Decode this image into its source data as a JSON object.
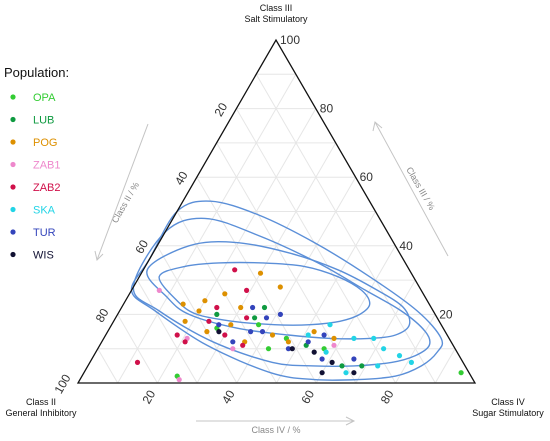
{
  "chart_data": {
    "type": "scatter",
    "subtype": "ternary",
    "corners": {
      "top": {
        "line1": "Class III",
        "line2": "Salt Stimulatory"
      },
      "left": {
        "line1": "Class II",
        "line2": "General Inhibitory"
      },
      "right": {
        "line1": "Class IV",
        "line2": "Sugar Stimulatory"
      }
    },
    "axes": {
      "class2": {
        "label": "Class II / %",
        "ticks": [
          20,
          40,
          60,
          80,
          100
        ]
      },
      "class3": {
        "label": "Class III / %",
        "ticks": [
          20,
          40,
          60,
          80,
          100
        ]
      },
      "class4": {
        "label": "Class IV / %",
        "ticks": [
          20,
          40,
          60,
          80
        ]
      }
    },
    "grid": true,
    "legend": {
      "title": "Population:",
      "position": "left",
      "items": [
        {
          "name": "OPA",
          "color": "#33cc33"
        },
        {
          "name": "LUB",
          "color": "#0f9a40"
        },
        {
          "name": "POG",
          "color": "#dd9000"
        },
        {
          "name": "ZAB1",
          "color": "#ee88cc"
        },
        {
          "name": "ZAB2",
          "color": "#d0104a"
        },
        {
          "name": "SKA",
          "color": "#22d4e6"
        },
        {
          "name": "TUR",
          "color": "#3344bb"
        },
        {
          "name": "WIS",
          "color": "#111133"
        }
      ]
    },
    "contour_color": "#5b8fd8",
    "contours": [
      [
        [
          64,
          31,
          5
        ],
        [
          63,
          24,
          13
        ],
        [
          60,
          20,
          20
        ],
        [
          52,
          18,
          30
        ],
        [
          42,
          17,
          41
        ],
        [
          33,
          17,
          50
        ],
        [
          25,
          18,
          57
        ],
        [
          19,
          20,
          61
        ],
        [
          15,
          23,
          62
        ],
        [
          15,
          27,
          58
        ],
        [
          19,
          31,
          50
        ],
        [
          26,
          34,
          40
        ],
        [
          36,
          35,
          29
        ],
        [
          47,
          35,
          18
        ],
        [
          56,
          34,
          10
        ]
      ],
      [
        [
          66,
          33,
          1
        ],
        [
          65,
          25,
          10
        ],
        [
          62,
          20,
          18
        ],
        [
          52,
          16,
          32
        ],
        [
          40,
          14,
          46
        ],
        [
          30,
          13,
          57
        ],
        [
          20,
          13,
          67
        ],
        [
          13,
          14,
          73
        ],
        [
          8,
          17,
          75
        ],
        [
          7,
          22,
          71
        ],
        [
          11,
          27,
          62
        ],
        [
          18,
          33,
          49
        ],
        [
          28,
          38,
          34
        ],
        [
          40,
          41,
          19
        ],
        [
          52,
          40,
          8
        ]
      ],
      [
        [
          72,
          28,
          0
        ],
        [
          69,
          21,
          10
        ],
        [
          60,
          12,
          28
        ],
        [
          48,
          6,
          46
        ],
        [
          38,
          5,
          57
        ],
        [
          28,
          5,
          67
        ],
        [
          18,
          6,
          76
        ],
        [
          11,
          8,
          81
        ],
        [
          6,
          11,
          83
        ],
        [
          5,
          15,
          80
        ],
        [
          8,
          21,
          71
        ],
        [
          14,
          27,
          59
        ],
        [
          22,
          35,
          43
        ],
        [
          33,
          43,
          24
        ],
        [
          44,
          48,
          8
        ],
        [
          56,
          44,
          0
        ]
      ],
      [
        [
          73,
          27,
          0
        ],
        [
          70,
          21,
          9
        ],
        [
          62,
          11,
          27
        ],
        [
          50,
          3,
          47
        ],
        [
          40,
          1,
          59
        ],
        [
          29,
          1,
          70
        ],
        [
          19,
          2,
          79
        ],
        [
          11,
          5,
          84
        ],
        [
          5,
          9,
          86
        ],
        [
          2,
          13,
          85
        ],
        [
          4,
          21,
          75
        ],
        [
          11,
          31,
          58
        ],
        [
          20,
          41,
          39
        ],
        [
          30,
          49,
          21
        ],
        [
          40,
          53,
          7
        ],
        [
          50,
          50,
          0
        ],
        [
          64,
          36,
          0
        ]
      ]
    ],
    "points": [
      {
        "pop": "OPA",
        "c2": 57,
        "c3": 16,
        "c4": 27
      },
      {
        "pop": "OPA",
        "c2": 47,
        "c3": 10,
        "c4": 43
      },
      {
        "pop": "OPA",
        "c2": 41,
        "c3": 13,
        "c4": 46
      },
      {
        "pop": "OPA",
        "c2": 33,
        "c3": 10,
        "c4": 57
      },
      {
        "pop": "OPA",
        "c2": 2,
        "c3": 3,
        "c4": 95
      },
      {
        "pop": "OPA",
        "c2": 74,
        "c3": 2,
        "c4": 24
      },
      {
        "pop": "OPA",
        "c2": 46,
        "c3": 17,
        "c4": 37
      },
      {
        "pop": "LUB",
        "c2": 55,
        "c3": 20,
        "c4": 25
      },
      {
        "pop": "LUB",
        "c2": 46,
        "c3": 19,
        "c4": 35
      },
      {
        "pop": "LUB",
        "c2": 37,
        "c3": 11,
        "c4": 52
      },
      {
        "pop": "LUB",
        "c2": 31,
        "c3": 5,
        "c4": 64
      },
      {
        "pop": "LUB",
        "c2": 42,
        "c3": 22,
        "c4": 36
      },
      {
        "pop": "LUB",
        "c2": 26,
        "c3": 5,
        "c4": 69
      },
      {
        "pop": "POG",
        "c2": 64,
        "c3": 18,
        "c4": 18
      },
      {
        "pop": "POG",
        "c2": 62,
        "c3": 23,
        "c4": 15
      },
      {
        "pop": "POG",
        "c2": 59,
        "c3": 21,
        "c4": 20
      },
      {
        "pop": "POG",
        "c2": 56,
        "c3": 24,
        "c4": 20
      },
      {
        "pop": "POG",
        "c2": 53,
        "c3": 17,
        "c4": 30
      },
      {
        "pop": "POG",
        "c2": 50,
        "c3": 26,
        "c4": 24
      },
      {
        "pop": "POG",
        "c2": 44,
        "c3": 14,
        "c4": 42
      },
      {
        "pop": "POG",
        "c2": 38,
        "c3": 32,
        "c4": 30
      },
      {
        "pop": "POG",
        "c2": 35,
        "c3": 28,
        "c4": 37
      },
      {
        "pop": "POG",
        "c2": 41,
        "c3": 12,
        "c4": 47
      },
      {
        "pop": "POG",
        "c2": 33,
        "c3": 15,
        "c4": 52
      },
      {
        "pop": "POG",
        "c2": 60,
        "c3": 15,
        "c4": 25
      },
      {
        "pop": "POG",
        "c2": 48,
        "c3": 22,
        "c4": 30
      },
      {
        "pop": "POG",
        "c2": 29,
        "c3": 13,
        "c4": 58
      },
      {
        "pop": "POG",
        "c2": 52,
        "c3": 12,
        "c4": 36
      },
      {
        "pop": "ZAB1",
        "c2": 66,
        "c3": 27,
        "c4": 7
      },
      {
        "pop": "ZAB1",
        "c2": 66,
        "c3": 13,
        "c4": 21
      },
      {
        "pop": "ZAB1",
        "c2": 74,
        "c3": 1,
        "c4": 25
      },
      {
        "pop": "ZAB1",
        "c2": 56,
        "c3": 10,
        "c4": 34
      },
      {
        "pop": "ZAB1",
        "c2": 30,
        "c3": 11,
        "c4": 59
      },
      {
        "pop": "ZAB2",
        "c2": 82,
        "c3": 6,
        "c4": 12
      },
      {
        "pop": "ZAB2",
        "c2": 68,
        "c3": 14,
        "c4": 18
      },
      {
        "pop": "ZAB2",
        "c2": 67,
        "c3": 12,
        "c4": 21
      },
      {
        "pop": "ZAB2",
        "c2": 58,
        "c3": 18,
        "c4": 24
      },
      {
        "pop": "ZAB2",
        "c2": 54,
        "c3": 22,
        "c4": 24
      },
      {
        "pop": "ZAB2",
        "c2": 56,
        "c3": 14,
        "c4": 30
      },
      {
        "pop": "ZAB2",
        "c2": 44,
        "c3": 27,
        "c4": 29
      },
      {
        "pop": "ZAB2",
        "c2": 44,
        "c3": 33,
        "c4": 23
      },
      {
        "pop": "ZAB2",
        "c2": 53,
        "c3": 11,
        "c4": 36
      },
      {
        "pop": "ZAB2",
        "c2": 48,
        "c3": 19,
        "c4": 33
      },
      {
        "pop": "SKA",
        "c2": 33,
        "c3": 9,
        "c4": 58
      },
      {
        "pop": "SKA",
        "c2": 24,
        "c3": 13,
        "c4": 63
      },
      {
        "pop": "SKA",
        "c2": 28,
        "c3": 17,
        "c4": 55
      },
      {
        "pop": "SKA",
        "c2": 19,
        "c3": 13,
        "c4": 68
      },
      {
        "pop": "SKA",
        "c2": 18,
        "c3": 10,
        "c4": 72
      },
      {
        "pop": "SKA",
        "c2": 15,
        "c3": 8,
        "c4": 77
      },
      {
        "pop": "SKA",
        "c2": 13,
        "c3": 6,
        "c4": 81
      },
      {
        "pop": "SKA",
        "c2": 22,
        "c3": 5,
        "c4": 73
      },
      {
        "pop": "SKA",
        "c2": 31,
        "c3": 3,
        "c4": 66
      },
      {
        "pop": "SKA",
        "c2": 35,
        "c3": 14,
        "c4": 51
      },
      {
        "pop": "TUR",
        "c2": 56,
        "c3": 17,
        "c4": 27
      },
      {
        "pop": "TUR",
        "c2": 55,
        "c3": 12,
        "c4": 33
      },
      {
        "pop": "TUR",
        "c2": 49,
        "c3": 15,
        "c4": 36
      },
      {
        "pop": "TUR",
        "c2": 46,
        "c3": 15,
        "c4": 39
      },
      {
        "pop": "TUR",
        "c2": 45,
        "c3": 22,
        "c4": 33
      },
      {
        "pop": "TUR",
        "c2": 43,
        "c3": 19,
        "c4": 38
      },
      {
        "pop": "TUR",
        "c2": 42,
        "c3": 10,
        "c4": 48
      },
      {
        "pop": "TUR",
        "c2": 36,
        "c3": 12,
        "c4": 52
      },
      {
        "pop": "TUR",
        "c2": 35,
        "c3": 7,
        "c4": 58
      },
      {
        "pop": "TUR",
        "c2": 27,
        "c3": 7,
        "c4": 66
      },
      {
        "pop": "TUR",
        "c2": 31,
        "c3": 14,
        "c4": 55
      },
      {
        "pop": "TUR",
        "c2": 39,
        "c3": 20,
        "c4": 41
      },
      {
        "pop": "WIS",
        "c2": 57,
        "c3": 15,
        "c4": 28
      },
      {
        "pop": "WIS",
        "c2": 41,
        "c3": 10,
        "c4": 49
      },
      {
        "pop": "WIS",
        "c2": 37,
        "c3": 3,
        "c4": 60
      },
      {
        "pop": "WIS",
        "c2": 33,
        "c3": 6,
        "c4": 61
      },
      {
        "pop": "WIS",
        "c2": 29,
        "c3": 3,
        "c4": 68
      },
      {
        "pop": "WIS",
        "c2": 36,
        "c3": 9,
        "c4": 55
      }
    ]
  }
}
